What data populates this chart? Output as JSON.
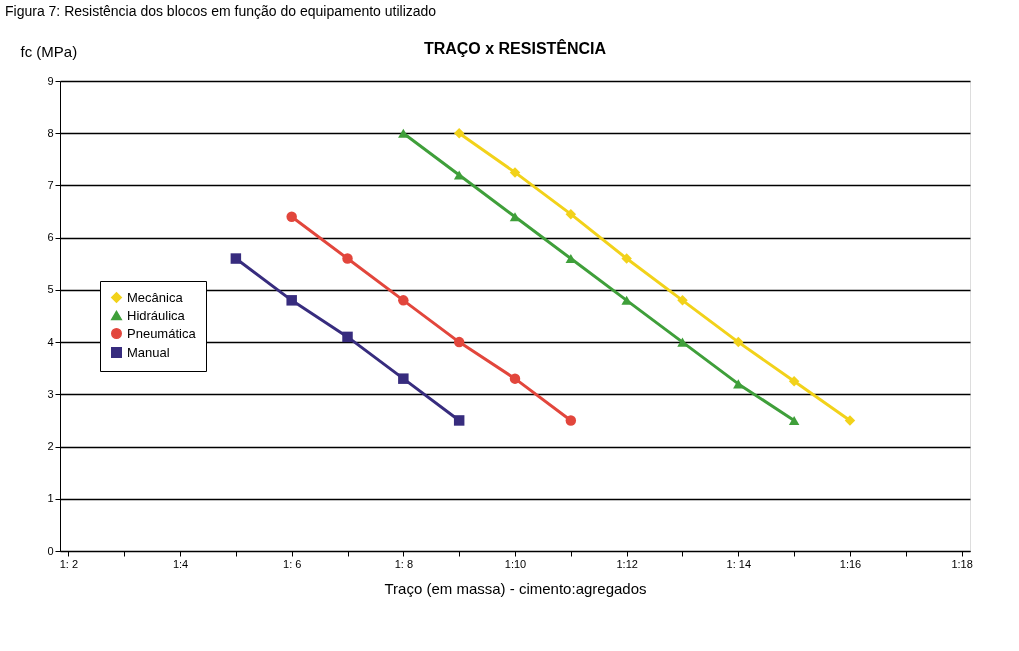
{
  "chart_data": {
    "type": "line",
    "title": "TRAÇO x RESISTÊNCIA",
    "annotations": [
      "Figura 7: Resistência dos blocos em função do equipamento utilizado"
    ],
    "xlabel": "Traço (em massa) - cimento:agregados",
    "ylabel": "fc (MPa)",
    "categories": [
      "1: 2",
      null,
      "1:4",
      null,
      "1: 6",
      null,
      "1: 8",
      null,
      "1:10",
      null,
      "1:12",
      null,
      "1: 14",
      null,
      "1:16",
      null,
      "1:18"
    ],
    "ylim": [
      0,
      9
    ],
    "yticks": [
      0,
      1,
      2,
      3,
      4,
      5,
      6,
      7,
      8,
      9
    ],
    "grid": "y",
    "legend": "left",
    "line_style": "solid",
    "series": [
      {
        "name": "Mecânica",
        "color": "#f2d21a",
        "marker": "diamond",
        "values": [
          null,
          null,
          null,
          null,
          null,
          null,
          null,
          8,
          7.25,
          6.45,
          5.6,
          4.8,
          4.0,
          3.25,
          2.5,
          null,
          null
        ]
      },
      {
        "name": "Hidráulica",
        "color": "#3f9f3a",
        "marker": "triangle",
        "values": [
          null,
          null,
          null,
          null,
          null,
          null,
          8,
          7.2,
          6.4,
          5.6,
          4.8,
          4.0,
          3.2,
          2.5,
          null,
          null,
          null
        ]
      },
      {
        "name": "Pneumática",
        "color": "#e2463c",
        "marker": "circle",
        "values": [
          null,
          null,
          null,
          null,
          6.4,
          5.6,
          4.8,
          4.0,
          3.3,
          2.5,
          null,
          null,
          null,
          null,
          null,
          null,
          null
        ]
      },
      {
        "name": "Manual",
        "color": "#372c7e",
        "marker": "square",
        "values": [
          null,
          null,
          null,
          5.6,
          4.8,
          4.1,
          3.3,
          2.5,
          null,
          null,
          null,
          null,
          null,
          null,
          null,
          null,
          null
        ]
      }
    ]
  }
}
